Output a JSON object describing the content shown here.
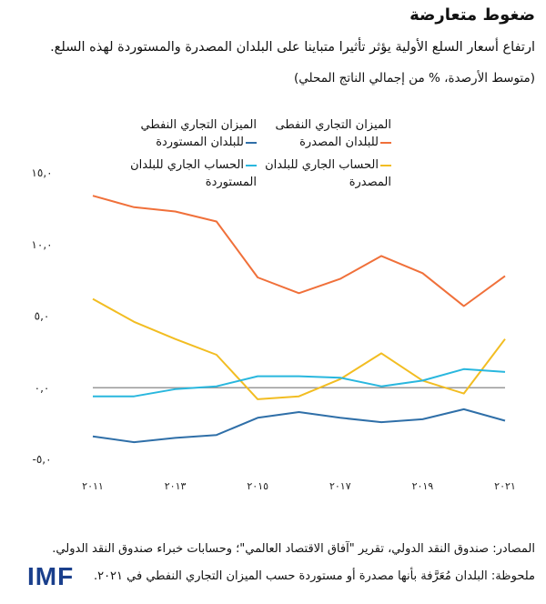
{
  "header": {
    "title": "ضغوط متعارضة",
    "subtitle": "ارتفاع أسعار السلع الأولية يؤثر تأثيرا متباينا على البلدان المصدرة والمستوردة لهذه السلع.",
    "unit": "(متوسط الأرصدة، % من إجمالي الناتج المحلي)"
  },
  "colors": {
    "orange": "#f0703a",
    "blue": "#2f6fa8",
    "yellow": "#f2bd22",
    "cyan": "#29b7de",
    "zero_line": "#999999"
  },
  "chart_data": {
    "type": "line",
    "x": [
      2011,
      2012,
      2013,
      2014,
      2015,
      2016,
      2017,
      2018,
      2019,
      2020,
      2021
    ],
    "x_tick_labels": [
      "٢٠١١",
      "٢٠١٣",
      "٢٠١٥",
      "٢٠١٧",
      "٢٠١٩",
      "٢٠٢١"
    ],
    "x_tick_values": [
      2011,
      2013,
      2015,
      2017,
      2019,
      2021
    ],
    "y_tick_labels": [
      "١٥,٠",
      "١٠,٠",
      "٥,٠",
      "٠,٠",
      "-٥,٠"
    ],
    "y_tick_values": [
      15,
      10,
      5,
      0,
      -5
    ],
    "ylim": [
      -5,
      15
    ],
    "xlim": [
      2011,
      2021
    ],
    "series": [
      {
        "name": "الميزان التجاري النفطي للبلدان المصدرة",
        "color_key": "orange",
        "values": [
          13.4,
          12.6,
          12.3,
          11.6,
          7.7,
          6.6,
          7.6,
          9.2,
          8.0,
          5.7,
          7.8
        ]
      },
      {
        "name": "الميزان التجاري النفطي للبلدان المستوردة",
        "color_key": "blue",
        "values": [
          -3.4,
          -3.8,
          -3.5,
          -3.3,
          -2.1,
          -1.7,
          -2.1,
          -2.4,
          -2.2,
          -1.5,
          -2.3
        ]
      },
      {
        "name": "الحساب الجاري للبلدان المصدرة",
        "color_key": "yellow",
        "values": [
          6.2,
          4.6,
          3.4,
          2.3,
          -0.8,
          -0.6,
          0.6,
          2.4,
          0.5,
          -0.4,
          3.4
        ]
      },
      {
        "name": "الحساب الجاري للبلدان المستوردة",
        "color_key": "cyan",
        "values": [
          -0.6,
          -0.6,
          -0.1,
          0.1,
          0.8,
          0.8,
          0.7,
          0.1,
          0.5,
          1.3,
          1.1
        ]
      }
    ]
  },
  "legend": {
    "oil_exporters_title": "الميزان التجاري النفطى",
    "oil_exporters_label": "للبلدان المصدرة",
    "oil_importers_title": "الميزان التجاري النفطي",
    "oil_importers_label": "للبلدان المستوردة",
    "ca_exporters_line1": "الحساب الجاري للبلدان",
    "ca_exporters_line2": "المصدرة",
    "ca_importers_line1": "الحساب الجاري للبلدان",
    "ca_importers_line2": "المستوردة"
  },
  "footer": {
    "source": "المصادر: صندوق النقد الدولي، تقرير \"آفاق الاقتصاد العالمي\"؛ وحسابات خبراء صندوق النقد الدولي.",
    "note": "ملحوظة: البلدان مُعَرَّفة بأنها مصدرة أو مستوردة حسب الميزان التجاري النفطي في ٢٠٢١.",
    "logo_text": "IMF"
  }
}
